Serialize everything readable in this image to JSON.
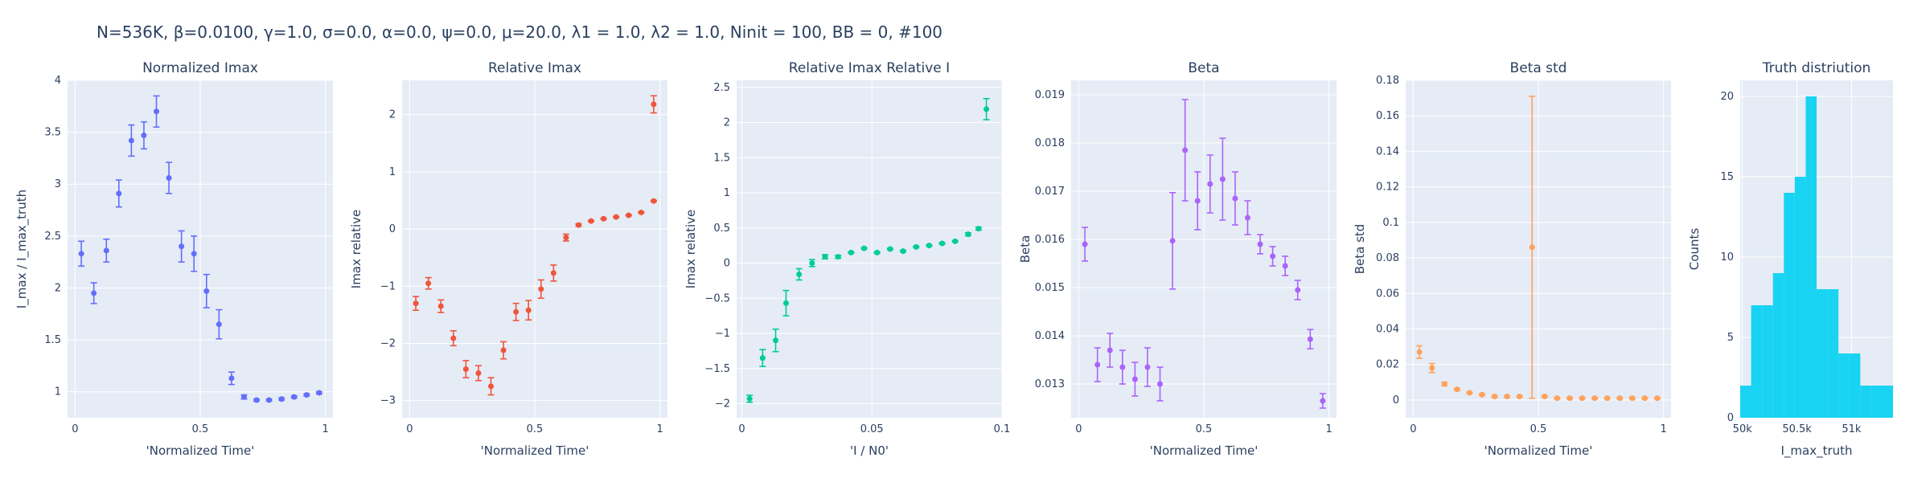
{
  "title": "N=536K, β=0.0100, γ=1.0, σ=0.0,  α=0.0, ψ=0.0, μ=20.0, λ1 = 1.0, λ2 = 1.0, Ninit = 100, BB = 0, #100",
  "colors": {
    "plot_bg": "#e5ecf6",
    "grid": "#ffffff",
    "text": "#2a3f5f",
    "blue": "#636efa",
    "red": "#ef553b",
    "green": "#00cc96",
    "purple": "#ab63fa",
    "orange": "#ffa15a",
    "cyan": "#19d3f3"
  },
  "chart_data": [
    {
      "type": "scatter",
      "title": "Normalized Imax",
      "xlabel": "'Normalized Time'",
      "ylabel": "I_max / I_max_truth",
      "xlim": [
        -0.03,
        1.03
      ],
      "ylim": [
        0.75,
        4.0
      ],
      "xticks": [
        0,
        0.5,
        1
      ],
      "xtick_labels": [
        "0",
        "0.5",
        "1"
      ],
      "yticks": [
        1,
        1.5,
        2,
        2.5,
        3,
        3.5,
        4
      ],
      "ytick_labels": [
        "1",
        "1.5",
        "2",
        "2.5",
        "3",
        "3.5",
        "4"
      ],
      "color": "blue",
      "points": [
        {
          "x": 0.025,
          "y": 2.33,
          "err": 0.12
        },
        {
          "x": 0.075,
          "y": 1.95,
          "err": 0.1
        },
        {
          "x": 0.125,
          "y": 2.36,
          "err": 0.11
        },
        {
          "x": 0.175,
          "y": 2.91,
          "err": 0.13
        },
        {
          "x": 0.225,
          "y": 3.42,
          "err": 0.15
        },
        {
          "x": 0.275,
          "y": 3.47,
          "err": 0.13
        },
        {
          "x": 0.325,
          "y": 3.7,
          "err": 0.15
        },
        {
          "x": 0.375,
          "y": 3.06,
          "err": 0.15
        },
        {
          "x": 0.425,
          "y": 2.4,
          "err": 0.15
        },
        {
          "x": 0.475,
          "y": 2.33,
          "err": 0.17
        },
        {
          "x": 0.525,
          "y": 1.97,
          "err": 0.16
        },
        {
          "x": 0.575,
          "y": 1.65,
          "err": 0.14
        },
        {
          "x": 0.625,
          "y": 1.13,
          "err": 0.06
        },
        {
          "x": 0.675,
          "y": 0.95,
          "err": 0.02
        },
        {
          "x": 0.725,
          "y": 0.92,
          "err": 0.01
        },
        {
          "x": 0.775,
          "y": 0.92,
          "err": 0.01
        },
        {
          "x": 0.825,
          "y": 0.93,
          "err": 0.01
        },
        {
          "x": 0.875,
          "y": 0.95,
          "err": 0.01
        },
        {
          "x": 0.925,
          "y": 0.97,
          "err": 0.01
        },
        {
          "x": 0.975,
          "y": 0.99,
          "err": 0.01
        }
      ]
    },
    {
      "type": "scatter",
      "title": "Relative Imax",
      "xlabel": "'Normalized Time'",
      "ylabel": "Imax relative",
      "xlim": [
        -0.03,
        1.03
      ],
      "ylim": [
        -3.3,
        2.6
      ],
      "xticks": [
        0,
        0.5,
        1
      ],
      "xtick_labels": [
        "0",
        "0.5",
        "1"
      ],
      "yticks": [
        -3,
        -2,
        -1,
        0,
        1,
        2
      ],
      "ytick_labels": [
        "−3",
        "−2",
        "−1",
        "0",
        "1",
        "2"
      ],
      "color": "red",
      "points": [
        {
          "x": 0.025,
          "y": -1.3,
          "err": 0.12
        },
        {
          "x": 0.075,
          "y": -0.95,
          "err": 0.1
        },
        {
          "x": 0.125,
          "y": -1.35,
          "err": 0.11
        },
        {
          "x": 0.175,
          "y": -1.91,
          "err": 0.13
        },
        {
          "x": 0.225,
          "y": -2.45,
          "err": 0.15
        },
        {
          "x": 0.275,
          "y": -2.52,
          "err": 0.13
        },
        {
          "x": 0.325,
          "y": -2.75,
          "err": 0.15
        },
        {
          "x": 0.375,
          "y": -2.12,
          "err": 0.15
        },
        {
          "x": 0.425,
          "y": -1.45,
          "err": 0.15
        },
        {
          "x": 0.475,
          "y": -1.42,
          "err": 0.17
        },
        {
          "x": 0.525,
          "y": -1.05,
          "err": 0.16
        },
        {
          "x": 0.575,
          "y": -0.77,
          "err": 0.14
        },
        {
          "x": 0.625,
          "y": -0.15,
          "err": 0.06
        },
        {
          "x": 0.675,
          "y": 0.07,
          "err": 0.02
        },
        {
          "x": 0.725,
          "y": 0.14,
          "err": 0.01
        },
        {
          "x": 0.775,
          "y": 0.18,
          "err": 0.01
        },
        {
          "x": 0.825,
          "y": 0.21,
          "err": 0.01
        },
        {
          "x": 0.875,
          "y": 0.24,
          "err": 0.01
        },
        {
          "x": 0.925,
          "y": 0.29,
          "err": 0.01
        },
        {
          "x": 0.975,
          "y": 0.49,
          "err": 0.01
        },
        {
          "x": 0.975,
          "y": 2.18,
          "err": 0.15
        }
      ]
    },
    {
      "type": "scatter",
      "title": "Relative Imax Relative I",
      "xlabel": "'I / N0'",
      "ylabel": "Imax relative",
      "xlim": [
        -0.002,
        0.1
      ],
      "ylim": [
        -2.2,
        2.6
      ],
      "xticks": [
        0,
        0.05,
        0.1
      ],
      "xtick_labels": [
        "0",
        "0.05",
        "0.1"
      ],
      "yticks": [
        -2,
        -1.5,
        -1,
        -0.5,
        0,
        0.5,
        1,
        1.5,
        2,
        2.5
      ],
      "ytick_labels": [
        "−2",
        "−1.5",
        "−1",
        "−0.5",
        "0",
        "0.5",
        "1",
        "1.5",
        "2",
        "2.5"
      ],
      "color": "green",
      "points": [
        {
          "x": 0.003,
          "y": -1.93,
          "err": 0.05
        },
        {
          "x": 0.008,
          "y": -1.35,
          "err": 0.12
        },
        {
          "x": 0.013,
          "y": -1.1,
          "err": 0.16
        },
        {
          "x": 0.017,
          "y": -0.57,
          "err": 0.18
        },
        {
          "x": 0.022,
          "y": -0.16,
          "err": 0.08
        },
        {
          "x": 0.027,
          "y": 0.0,
          "err": 0.05
        },
        {
          "x": 0.032,
          "y": 0.09,
          "err": 0.03
        },
        {
          "x": 0.037,
          "y": 0.09,
          "err": 0.02
        },
        {
          "x": 0.042,
          "y": 0.15,
          "err": 0.01
        },
        {
          "x": 0.047,
          "y": 0.21,
          "err": 0.01
        },
        {
          "x": 0.052,
          "y": 0.15,
          "err": 0.01
        },
        {
          "x": 0.057,
          "y": 0.2,
          "err": 0.01
        },
        {
          "x": 0.062,
          "y": 0.17,
          "err": 0.01
        },
        {
          "x": 0.067,
          "y": 0.23,
          "err": 0.01
        },
        {
          "x": 0.072,
          "y": 0.25,
          "err": 0.01
        },
        {
          "x": 0.077,
          "y": 0.28,
          "err": 0.01
        },
        {
          "x": 0.082,
          "y": 0.31,
          "err": 0.01
        },
        {
          "x": 0.087,
          "y": 0.41,
          "err": 0.02
        },
        {
          "x": 0.091,
          "y": 0.49,
          "err": 0.02
        },
        {
          "x": 0.094,
          "y": 2.19,
          "err": 0.15
        }
      ]
    },
    {
      "type": "scatter",
      "title": "Beta",
      "xlabel": "'Normalized Time'",
      "ylabel": "Beta",
      "xlim": [
        -0.03,
        1.03
      ],
      "ylim": [
        0.0123,
        0.0193
      ],
      "xticks": [
        0,
        0.5,
        1
      ],
      "xtick_labels": [
        "0",
        "0.5",
        "1"
      ],
      "yticks": [
        0.013,
        0.014,
        0.015,
        0.016,
        0.017,
        0.018,
        0.019
      ],
      "ytick_labels": [
        "0.013",
        "0.014",
        "0.015",
        "0.016",
        "0.017",
        "0.018",
        "0.019"
      ],
      "color": "purple",
      "points": [
        {
          "x": 0.025,
          "y": 0.0159,
          "err": 0.00035
        },
        {
          "x": 0.075,
          "y": 0.0134,
          "err": 0.00035
        },
        {
          "x": 0.125,
          "y": 0.0137,
          "err": 0.00035
        },
        {
          "x": 0.175,
          "y": 0.01335,
          "err": 0.00035
        },
        {
          "x": 0.225,
          "y": 0.0131,
          "err": 0.00035
        },
        {
          "x": 0.275,
          "y": 0.01335,
          "err": 0.0004
        },
        {
          "x": 0.325,
          "y": 0.013,
          "err": 0.00035
        },
        {
          "x": 0.375,
          "y": 0.01597,
          "err": 0.001
        },
        {
          "x": 0.425,
          "y": 0.01785,
          "err": 0.00105
        },
        {
          "x": 0.475,
          "y": 0.0168,
          "err": 0.0006
        },
        {
          "x": 0.525,
          "y": 0.01715,
          "err": 0.0006
        },
        {
          "x": 0.575,
          "y": 0.01725,
          "err": 0.00085
        },
        {
          "x": 0.625,
          "y": 0.01685,
          "err": 0.00055
        },
        {
          "x": 0.675,
          "y": 0.01645,
          "err": 0.00035
        },
        {
          "x": 0.725,
          "y": 0.0159,
          "err": 0.0002
        },
        {
          "x": 0.775,
          "y": 0.01565,
          "err": 0.0002
        },
        {
          "x": 0.825,
          "y": 0.01545,
          "err": 0.0002
        },
        {
          "x": 0.875,
          "y": 0.01495,
          "err": 0.0002
        },
        {
          "x": 0.925,
          "y": 0.01393,
          "err": 0.0002
        },
        {
          "x": 0.975,
          "y": 0.01265,
          "err": 0.00015
        }
      ]
    },
    {
      "type": "scatter",
      "title": "Beta std",
      "xlabel": "'Normalized Time'",
      "ylabel": "Beta std",
      "xlim": [
        -0.03,
        1.03
      ],
      "ylim": [
        -0.01,
        0.18
      ],
      "xticks": [
        0,
        0.5,
        1
      ],
      "xtick_labels": [
        "0",
        "0.5",
        "1"
      ],
      "yticks": [
        0,
        0.02,
        0.04,
        0.06,
        0.08,
        0.1,
        0.12,
        0.14,
        0.16,
        0.18
      ],
      "ytick_labels": [
        "0",
        "0.02",
        "0.04",
        "0.06",
        "0.08",
        "0.1",
        "0.12",
        "0.14",
        "0.16",
        "0.18"
      ],
      "color": "orange",
      "points": [
        {
          "x": 0.025,
          "y": 0.027,
          "err": 0.0035
        },
        {
          "x": 0.075,
          "y": 0.018,
          "err": 0.0025
        },
        {
          "x": 0.125,
          "y": 0.009,
          "err": 0.001
        },
        {
          "x": 0.175,
          "y": 0.006,
          "err": 0.0005
        },
        {
          "x": 0.225,
          "y": 0.004,
          "err": 0.0005
        },
        {
          "x": 0.275,
          "y": 0.003,
          "err": 0.0005
        },
        {
          "x": 0.325,
          "y": 0.002,
          "err": 0.0005
        },
        {
          "x": 0.375,
          "y": 0.002,
          "err": 0.0005
        },
        {
          "x": 0.425,
          "y": 0.002,
          "err": 0.0005
        },
        {
          "x": 0.475,
          "y": 0.086,
          "err": 0.085
        },
        {
          "x": 0.525,
          "y": 0.002,
          "err": 0.0005
        },
        {
          "x": 0.575,
          "y": 0.001,
          "err": 0.0005
        },
        {
          "x": 0.625,
          "y": 0.001,
          "err": 0.0005
        },
        {
          "x": 0.675,
          "y": 0.001,
          "err": 0.0005
        },
        {
          "x": 0.725,
          "y": 0.001,
          "err": 0.0005
        },
        {
          "x": 0.775,
          "y": 0.001,
          "err": 0.0005
        },
        {
          "x": 0.825,
          "y": 0.001,
          "err": 0.0005
        },
        {
          "x": 0.875,
          "y": 0.001,
          "err": 0.0005
        },
        {
          "x": 0.925,
          "y": 0.001,
          "err": 0.0005
        },
        {
          "x": 0.975,
          "y": 0.001,
          "err": 0.0005
        }
      ]
    },
    {
      "type": "bar",
      "title": "Truth distriution",
      "xlabel": "I_max_truth",
      "ylabel": "Counts",
      "xlim": [
        49980,
        51380
      ],
      "ylim": [
        0,
        21
      ],
      "xticks": [
        50000,
        50500,
        51000
      ],
      "xtick_labels": [
        "50k",
        "50.5k",
        "51k"
      ],
      "yticks": [
        0,
        5,
        10,
        15,
        20
      ],
      "ytick_labels": [
        "0",
        "5",
        "10",
        "15",
        "20"
      ],
      "color": "cyan",
      "bin_width": 100,
      "bins": [
        {
          "x0": 49980,
          "count": 2
        },
        {
          "x0": 50080,
          "count": 7
        },
        {
          "x0": 50180,
          "count": 7
        },
        {
          "x0": 50280,
          "count": 9
        },
        {
          "x0": 50380,
          "count": 14
        },
        {
          "x0": 50480,
          "count": 15
        },
        {
          "x0": 50580,
          "count": 20
        },
        {
          "x0": 50680,
          "count": 8
        },
        {
          "x0": 50780,
          "count": 8
        },
        {
          "x0": 50880,
          "count": 4
        },
        {
          "x0": 50980,
          "count": 4
        },
        {
          "x0": 51080,
          "count": 2
        },
        {
          "x0": 51180,
          "count": 2
        },
        {
          "x0": 51280,
          "count": 2
        }
      ]
    }
  ]
}
